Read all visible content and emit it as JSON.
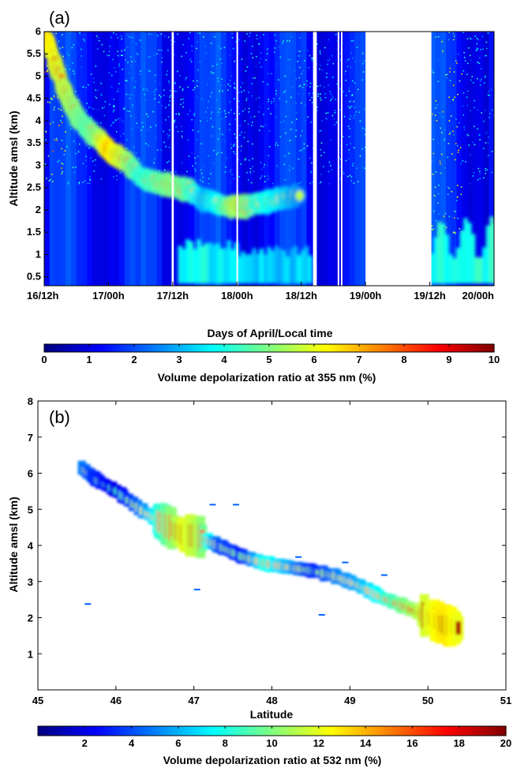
{
  "chart_data": [
    {
      "panel_label": "(a)",
      "type": "heatmap",
      "xlabel": "Days of April/Local time",
      "ylabel": "Altitude amsl (km)",
      "x_ticks": [
        "16/12h",
        "17/00h",
        "17/12h",
        "18/00h",
        "18/12h",
        "19/00h",
        "19/12h",
        "20/00h"
      ],
      "x_tick_hours": [
        0,
        12,
        24,
        36,
        48,
        60,
        72,
        84
      ],
      "ylim": [
        0.3,
        6
      ],
      "y_ticks": [
        0.5,
        1,
        1.5,
        2,
        2.5,
        3,
        3.5,
        4,
        4.5,
        5,
        5.5,
        6
      ],
      "colorbar": {
        "label": "Volume depolarization ratio at 355 nm (%)",
        "min": 0,
        "max": 10,
        "ticks": [
          0,
          1,
          2,
          3,
          4,
          5,
          6,
          7,
          8,
          9,
          10
        ]
      },
      "layer_track": {
        "x_hours": [
          0.5,
          2,
          4,
          6,
          8,
          10,
          12,
          15,
          18,
          21,
          24,
          27,
          30,
          33,
          36,
          40,
          44,
          48
        ],
        "y_km": [
          5.85,
          5.3,
          4.6,
          4.1,
          3.8,
          3.6,
          3.35,
          3.1,
          2.75,
          2.6,
          2.55,
          2.45,
          2.2,
          2.1,
          2.05,
          2.15,
          2.25,
          2.35
        ],
        "depol_pct": [
          9.5,
          9,
          8.5,
          8,
          7.5,
          8,
          9.5,
          8.5,
          7,
          7.5,
          8,
          7.5,
          6,
          7,
          8.5,
          7,
          6.5,
          5.5
        ]
      },
      "data_gaps_hours": [
        [
          23.8,
          24.2
        ],
        [
          35.9,
          36.2
        ],
        [
          50.2,
          50.9
        ],
        [
          54.8,
          55.0
        ],
        [
          55.4,
          55.6
        ],
        [
          60.0,
          72.3
        ]
      ]
    },
    {
      "panel_label": "(b)",
      "type": "heatmap",
      "xlabel": "Latitude",
      "ylabel": "Altitude amsl (km)",
      "xlim": [
        45,
        51
      ],
      "x_ticks": [
        45,
        46,
        47,
        48,
        49,
        50,
        51
      ],
      "ylim": [
        0,
        8
      ],
      "y_ticks": [
        1,
        2,
        3,
        4,
        5,
        6,
        7,
        8
      ],
      "colorbar": {
        "label": "Volume depolarization ratio at 532 nm (%)",
        "min": 0,
        "max": 20,
        "ticks": [
          2,
          4,
          6,
          8,
          10,
          12,
          14,
          16,
          18,
          20
        ]
      },
      "layer_track": {
        "latitude": [
          45.55,
          45.75,
          46.0,
          46.3,
          46.6,
          46.85,
          47.05,
          47.3,
          47.6,
          47.9,
          48.2,
          48.5,
          48.8,
          49.1,
          49.4,
          49.7,
          50.0,
          50.2,
          50.4
        ],
        "altitude_km": [
          6.15,
          5.8,
          5.5,
          5.0,
          4.6,
          4.3,
          4.25,
          4.0,
          3.7,
          3.5,
          3.4,
          3.3,
          3.15,
          2.9,
          2.55,
          2.3,
          2.0,
          1.8,
          1.7
        ],
        "depol_pct": [
          12,
          10,
          9,
          12,
          16,
          19,
          18,
          11,
          10,
          15,
          13,
          10,
          12,
          13,
          15,
          17,
          19,
          20,
          19
        ]
      }
    }
  ]
}
